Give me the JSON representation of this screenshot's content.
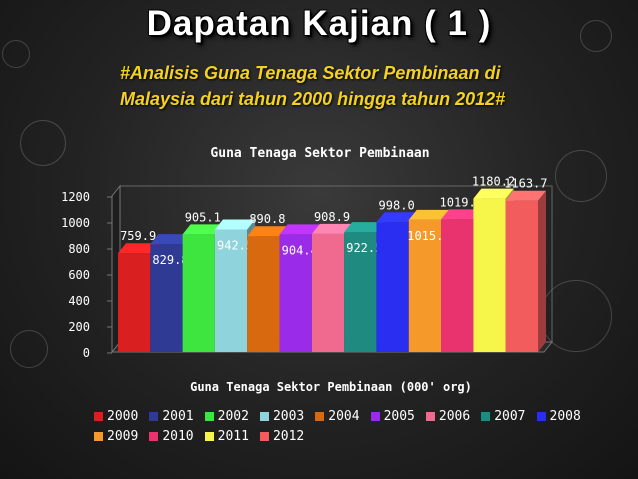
{
  "title": "Dapatan Kajian ( 1 )",
  "subtitle_lines": [
    "#Analisis Guna Tenaga Sektor Pembinaan di",
    "Malaysia dari tahun 2000 hingga tahun 2012#"
  ],
  "chart_data": {
    "type": "bar",
    "title": "Guna Tenaga Sektor Pembinaan",
    "xlabel": "Guna Tenaga Sektor Pembinaan (000' org)",
    "ylabel": "",
    "ylim": [
      0,
      1200
    ],
    "yticks": [
      0,
      200,
      400,
      600,
      800,
      1000,
      1200
    ],
    "grid": false,
    "legend_position": "bottom",
    "series": [
      {
        "name": "2000",
        "value": 759.9,
        "color": "#d91f1f"
      },
      {
        "name": "2001",
        "value": 829.8,
        "color": "#2e3a93"
      },
      {
        "name": "2002",
        "value": 905.1,
        "color": "#3ee53e"
      },
      {
        "name": "2003",
        "value": 942.5,
        "color": "#8fd3dc"
      },
      {
        "name": "2004",
        "value": 890.8,
        "color": "#d8690f"
      },
      {
        "name": "2005",
        "value": 904.4,
        "color": "#9a2be8"
      },
      {
        "name": "2006",
        "value": 908.9,
        "color": "#f06a8f"
      },
      {
        "name": "2007",
        "value": 922.5,
        "color": "#1e8a80"
      },
      {
        "name": "2008",
        "value": 998.0,
        "color": "#2a2ef0"
      },
      {
        "name": "2009",
        "value": 1015.9,
        "color": "#f59a2a"
      },
      {
        "name": "2010",
        "value": 1019.8,
        "color": "#e8336e"
      },
      {
        "name": "2011",
        "value": 1180.2,
        "color": "#f6f64a"
      },
      {
        "name": "2012",
        "value": 1163.7,
        "color": "#f25c5c"
      }
    ]
  }
}
